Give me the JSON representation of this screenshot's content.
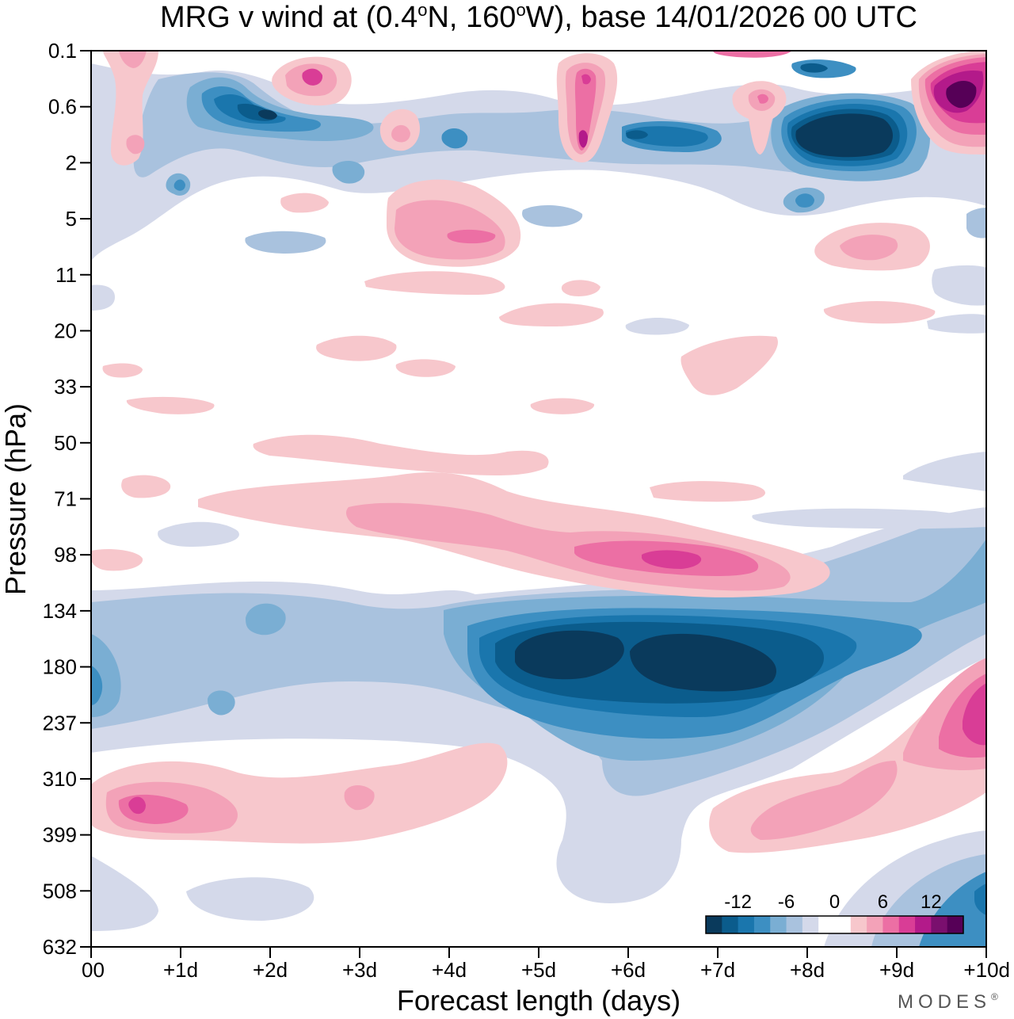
{
  "chart_data": {
    "type": "heatmap",
    "title": "MRG v wind at (0.4°N, 160°W),  base 14/01/2026  00 UTC",
    "title_parts": {
      "prefix": "MRG v wind at (0.4",
      "deg_sup_1": "o",
      "mid": "N, 160",
      "deg_sup_2": "o",
      "suffix": "W),  base 14/01/2026  00 UTC"
    },
    "xlabel": "Forecast length (days)",
    "ylabel": "Pressure (hPa)",
    "x_ticks": [
      "00",
      "+1d",
      "+2d",
      "+3d",
      "+4d",
      "+5d",
      "+6d",
      "+7d",
      "+8d",
      "+9d",
      "+10d"
    ],
    "xlim": [
      0,
      10
    ],
    "y_ticks": [
      "0.1",
      "0.6",
      "2",
      "5",
      "11",
      "20",
      "33",
      "50",
      "71",
      "98",
      "134",
      "180",
      "237",
      "310",
      "399",
      "508",
      "632"
    ],
    "colorbar": {
      "labels": [
        "-12",
        "-6",
        "0",
        "6",
        "12"
      ],
      "colors": [
        "#0a3a5c",
        "#0b5c8c",
        "#1a76ad",
        "#3d8fc2",
        "#7aaed3",
        "#a9c2de",
        "#d4d9ea",
        "#ffffff",
        "#ffffff",
        "#f7c7cc",
        "#f3a2b8",
        "#ec6fa4",
        "#d93d96",
        "#b31a8a",
        "#7a0f6e",
        "#560057"
      ]
    },
    "features": [
      {
        "name": "neg-core-180hpa-a",
        "x": [
          4.8,
          6.0
        ],
        "p": [
          134,
          237
        ],
        "v": -14
      },
      {
        "name": "neg-core-180hpa-b",
        "x": [
          6.0,
          7.8
        ],
        "p": [
          134,
          237
        ],
        "v": -14
      },
      {
        "name": "pos-core-98hpa",
        "x": [
          5.0,
          8.5
        ],
        "p": [
          71,
          134
        ],
        "v": 8
      },
      {
        "name": "pos-core-330hpa",
        "x": [
          0.3,
          1.7
        ],
        "p": [
          250,
          420
        ],
        "v": 6
      },
      {
        "name": "pos-core-237hpa-right",
        "x": [
          8.8,
          10
        ],
        "p": [
          150,
          330
        ],
        "v": 10
      },
      {
        "name": "neg-core-1hpa",
        "x": [
          7.7,
          9.2
        ],
        "p": [
          0.6,
          3
        ],
        "v": -14
      },
      {
        "name": "pos-core-0.4hpa-right",
        "x": [
          9.0,
          10
        ],
        "p": [
          0.1,
          2
        ],
        "v": 14
      }
    ],
    "grid": false,
    "legend": "bottom-right"
  },
  "brand": {
    "name": "MODES",
    "mark": "®"
  }
}
